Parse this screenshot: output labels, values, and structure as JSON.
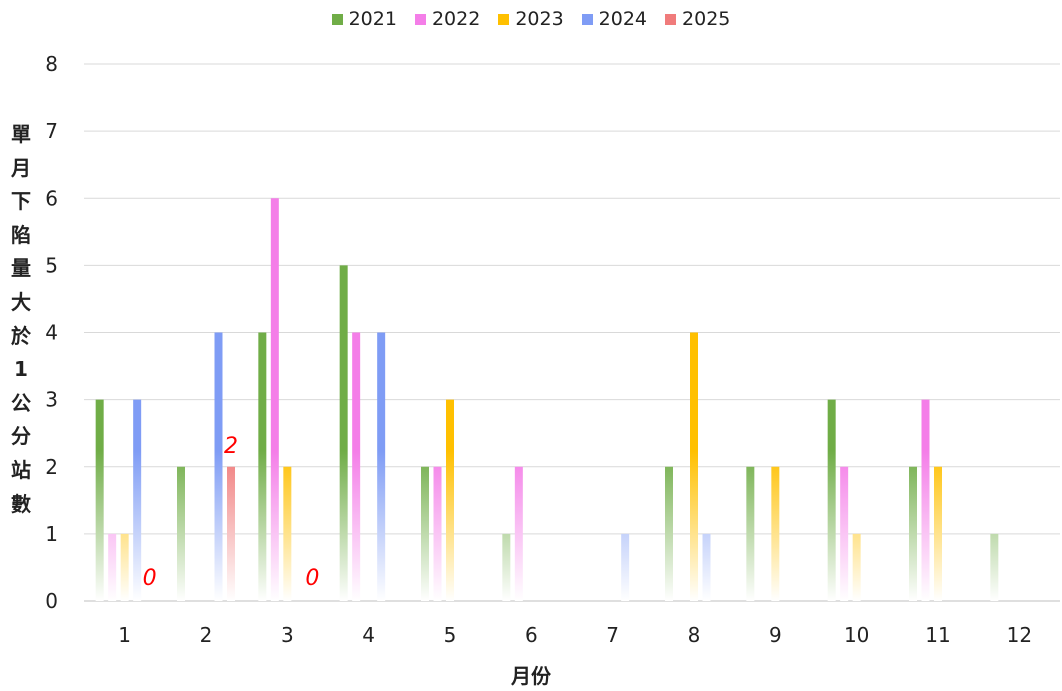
{
  "chart_data": {
    "type": "bar",
    "xlabel": "月份",
    "ylabel": "單月下陷量大於1公分站數",
    "ylim": [
      0,
      8
    ],
    "yticks": [
      0,
      1,
      2,
      3,
      4,
      5,
      6,
      7,
      8
    ],
    "grid": true,
    "legend_position": "top-center",
    "categories": [
      "1",
      "2",
      "3",
      "4",
      "5",
      "6",
      "7",
      "8",
      "9",
      "10",
      "11",
      "12"
    ],
    "series": [
      {
        "name": "2021",
        "color": "#70ad47",
        "values": [
          3,
          2,
          4,
          5,
          2,
          1,
          0,
          2,
          2,
          3,
          2,
          1
        ]
      },
      {
        "name": "2022",
        "color": "#f47ee8",
        "values": [
          1,
          0,
          6,
          4,
          2,
          2,
          0,
          0,
          0,
          2,
          3,
          0
        ]
      },
      {
        "name": "2023",
        "color": "#ffc000",
        "values": [
          1,
          0,
          2,
          0,
          3,
          0,
          0,
          4,
          2,
          1,
          2,
          0
        ]
      },
      {
        "name": "2024",
        "color": "#7f9cf5",
        "values": [
          3,
          4,
          0,
          4,
          0,
          0,
          1,
          1,
          0,
          0,
          0,
          0
        ]
      },
      {
        "name": "2025",
        "color": "#f07b7b",
        "values": [
          0,
          2,
          0,
          null,
          null,
          null,
          null,
          null,
          null,
          null,
          null,
          null
        ]
      }
    ],
    "annotations": [
      {
        "month": "1",
        "series": "2025",
        "text": "0"
      },
      {
        "month": "2",
        "series": "2025",
        "text": "2"
      },
      {
        "month": "3",
        "series": "2025",
        "text": "0"
      }
    ]
  }
}
